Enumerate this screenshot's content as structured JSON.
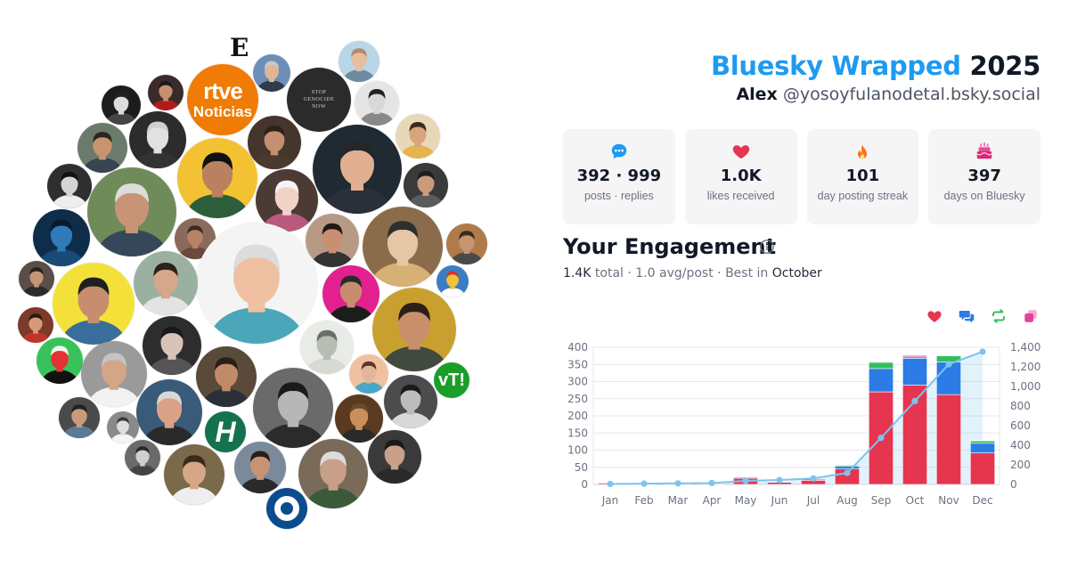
{
  "header": {
    "brand": "Bluesky Wrapped",
    "year": "2025",
    "user_name": "Alex",
    "handle": "@yosoyfulanodetal.bsky.social"
  },
  "stats": [
    {
      "icon": "speech-bubble-icon",
      "value": "392 · 999",
      "label": "posts · replies"
    },
    {
      "icon": "heart-icon",
      "value": "1.0K",
      "label": "likes received"
    },
    {
      "icon": "flame-icon",
      "value": "101",
      "label": "day posting streak"
    },
    {
      "icon": "cake-icon",
      "value": "397",
      "label": "days on Bluesky"
    }
  ],
  "engagement": {
    "title": "Your Engagement",
    "total": "1.4K",
    "total_word": "total",
    "avg": "1.0",
    "avg_word": "avg/post",
    "best_prefix": "Best in",
    "best_month": "October"
  },
  "avatars": {
    "logo_e": "E",
    "rtve_line1": "rtve",
    "rtve_line2": "Noticias",
    "stop_line1": "STOP",
    "stop_line2": "GENOCIDE",
    "stop_line3": "NOW",
    "vt_label": "vT!",
    "h_label": "H"
  },
  "colors": {
    "brand": "#1d9bf0",
    "likes": "#e6354f",
    "replies": "#2d7be5",
    "reposts": "#2fbf5b",
    "quotes": "#e0459a",
    "cumulative": "#7cc4ef"
  },
  "chart_data": {
    "type": "bar",
    "stacked": true,
    "categories": [
      "Jan",
      "Feb",
      "Mar",
      "Apr",
      "May",
      "Jun",
      "Jul",
      "Aug",
      "Sep",
      "Oct",
      "Nov",
      "Dec"
    ],
    "series": [
      {
        "key": "likes",
        "values": [
          4,
          2,
          2,
          2,
          18,
          6,
          12,
          45,
          270,
          290,
          262,
          92
        ]
      },
      {
        "key": "replies",
        "values": [
          1,
          1,
          1,
          1,
          3,
          2,
          3,
          8,
          68,
          78,
          95,
          28
        ]
      },
      {
        "key": "reposts",
        "values": [
          0,
          0,
          0,
          0,
          1,
          1,
          1,
          3,
          18,
          4,
          18,
          7
        ]
      },
      {
        "key": "quotes",
        "values": [
          0,
          0,
          0,
          0,
          0,
          0,
          0,
          0,
          2,
          4,
          1,
          1
        ]
      }
    ],
    "cumulative": {
      "values": [
        5,
        8,
        11,
        14,
        36,
        45,
        61,
        117,
        475,
        851,
        1227,
        1355
      ]
    },
    "y_left": {
      "ylim": [
        0,
        400
      ],
      "ticks": [
        0,
        50,
        100,
        150,
        200,
        250,
        300,
        350,
        400
      ]
    },
    "y_right": {
      "ylim": [
        0,
        1400
      ],
      "ticks": [
        "0",
        "200",
        "400",
        "600",
        "800",
        "1,000",
        "1,200",
        "1,400"
      ]
    },
    "grid": true,
    "legend": "top-right icons"
  }
}
